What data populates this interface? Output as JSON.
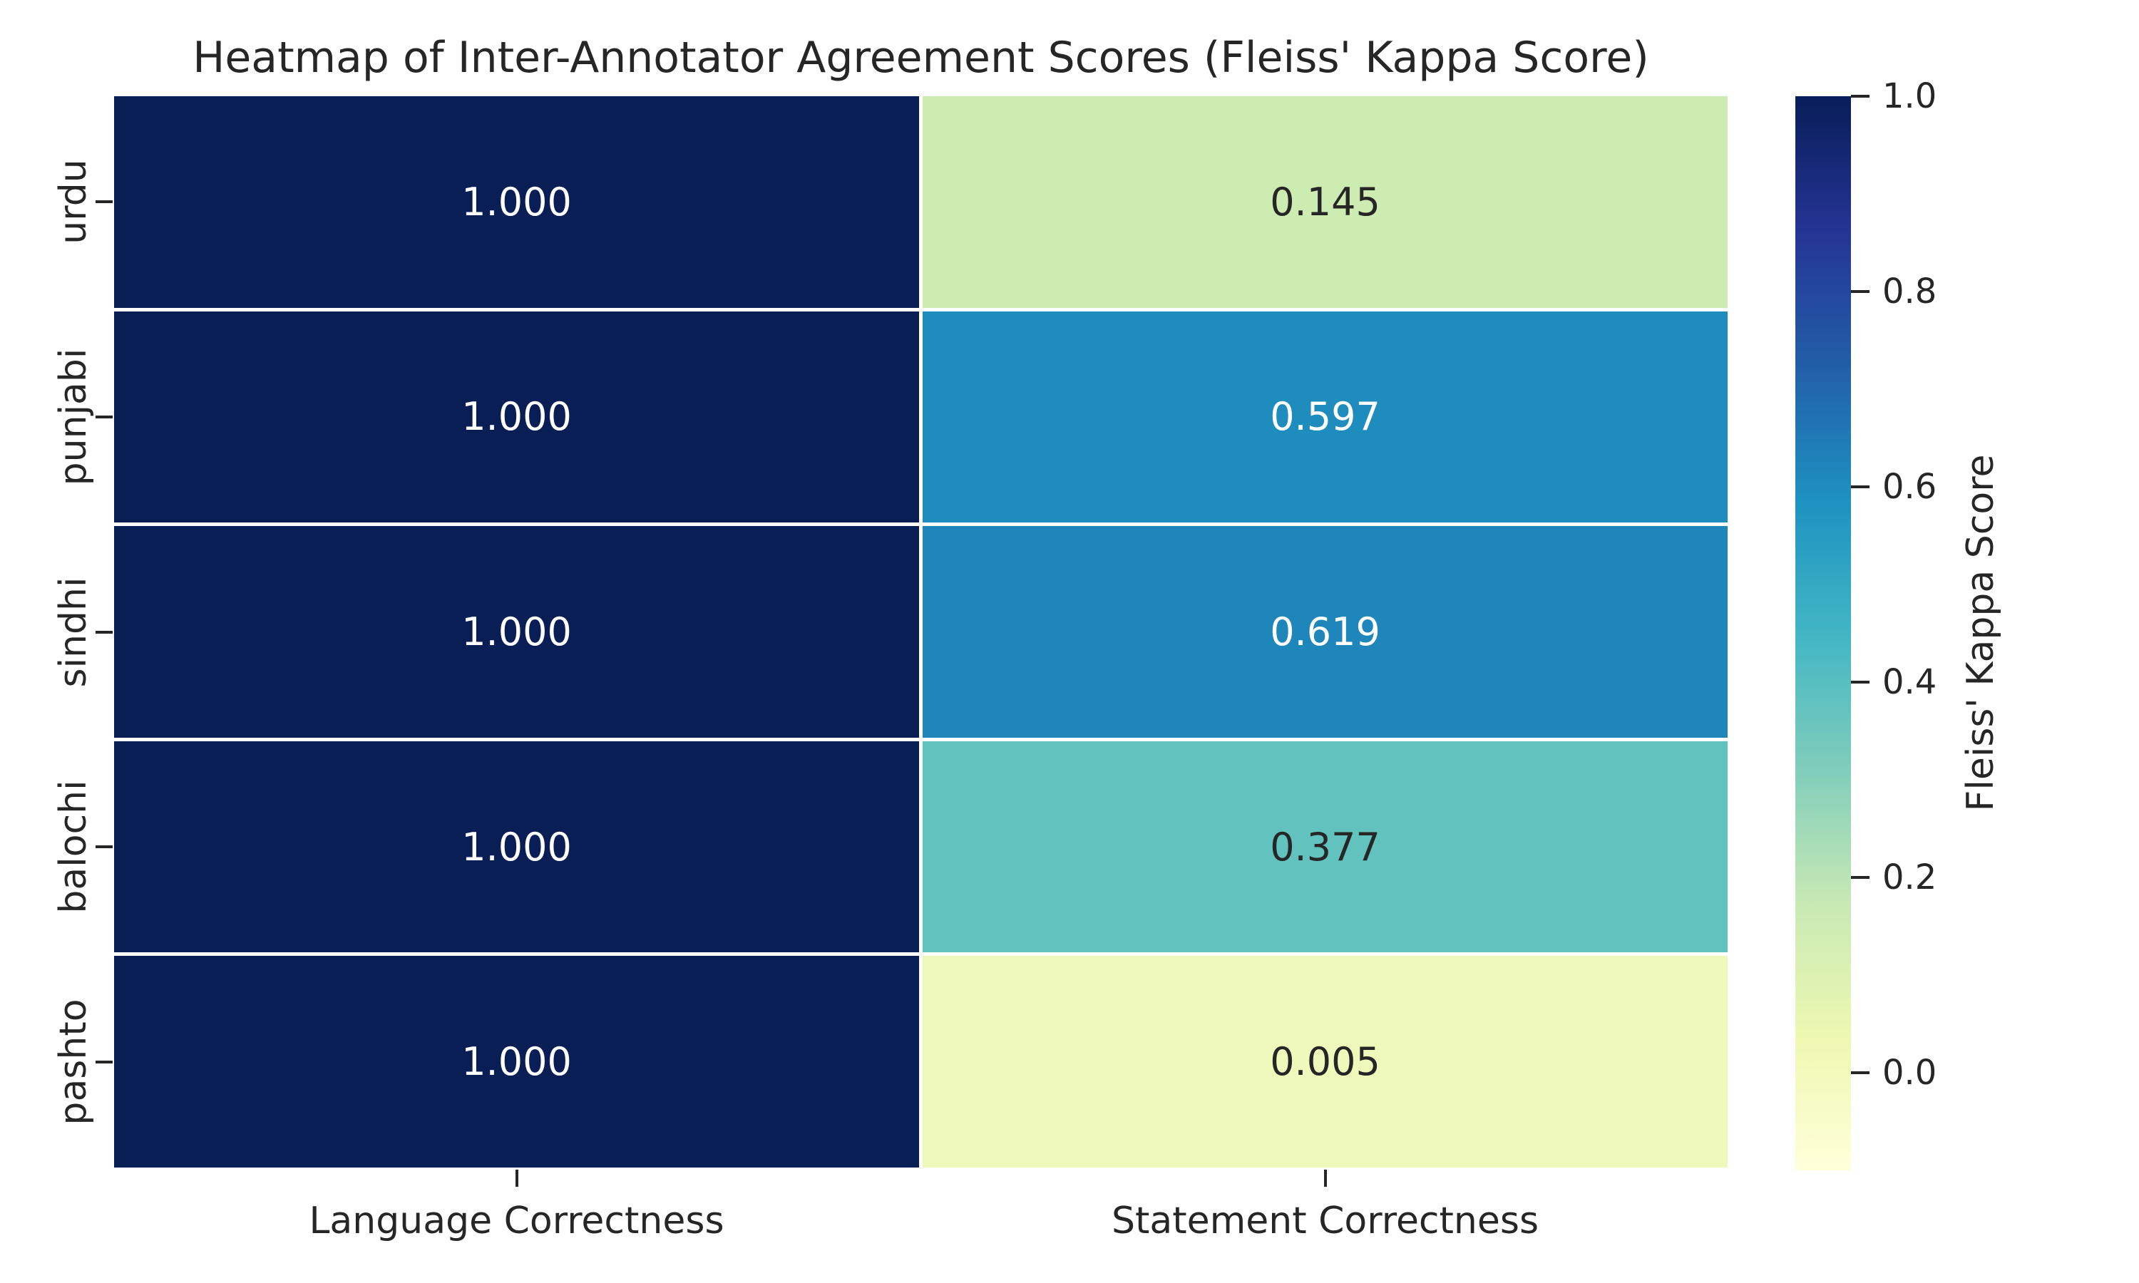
{
  "title": "Heatmap of Inter-Annotator Agreement Scores (Fleiss' Kappa Score)",
  "chart_data": {
    "type": "heatmap",
    "title": "Heatmap of Inter-Annotator Agreement Scores (Fleiss' Kappa Score)",
    "rows": [
      "urdu",
      "punjabi",
      "sindhi",
      "balochi",
      "pashto"
    ],
    "columns": [
      "Language Correctness",
      "Statement Correctness"
    ],
    "values": [
      [
        1.0,
        0.145
      ],
      [
        1.0,
        0.597
      ],
      [
        1.0,
        0.619
      ],
      [
        1.0,
        0.377
      ],
      [
        1.0,
        0.005
      ]
    ],
    "annotations": [
      [
        "1.000",
        "0.145"
      ],
      [
        "1.000",
        "0.597"
      ],
      [
        "1.000",
        "0.619"
      ],
      [
        "1.000",
        "0.377"
      ],
      [
        "1.000",
        "0.005"
      ]
    ],
    "cell_colors": [
      [
        "#0a1e56",
        "#cdecb1"
      ],
      [
        "#0a1e56",
        "#1e8dbe"
      ],
      [
        "#0a1e56",
        "#1e86ba"
      ],
      [
        "#0a1e56",
        "#61c2be"
      ],
      [
        "#0a1e56",
        "#f0f9bc"
      ]
    ],
    "cell_text_colors": [
      [
        "#ffffff",
        "#262626"
      ],
      [
        "#ffffff",
        "#ffffff"
      ],
      [
        "#ffffff",
        "#ffffff"
      ],
      [
        "#ffffff",
        "#262626"
      ],
      [
        "#ffffff",
        "#262626"
      ]
    ],
    "colorbar": {
      "label": "Fleiss' Kappa Score",
      "tick_labels": [
        "1.0",
        "0.8",
        "0.6",
        "0.4",
        "0.2",
        "0.0"
      ],
      "tick_values": [
        1.0,
        0.8,
        0.6,
        0.4,
        0.2,
        0.0
      ],
      "vmin": -0.1,
      "vmax": 1.0,
      "colormap": "YlGnBu",
      "gradient_top_to_bottom": [
        "#081d58",
        "#253494",
        "#225ea8",
        "#1d91c0",
        "#41b6c4",
        "#7fcdbb",
        "#c7e9b4",
        "#edf8b1",
        "#ffffd9"
      ]
    },
    "grid_line_color": "#ffffff",
    "background": "#ffffff",
    "text_color": "#262626",
    "legend_position": "right",
    "grid": false
  }
}
